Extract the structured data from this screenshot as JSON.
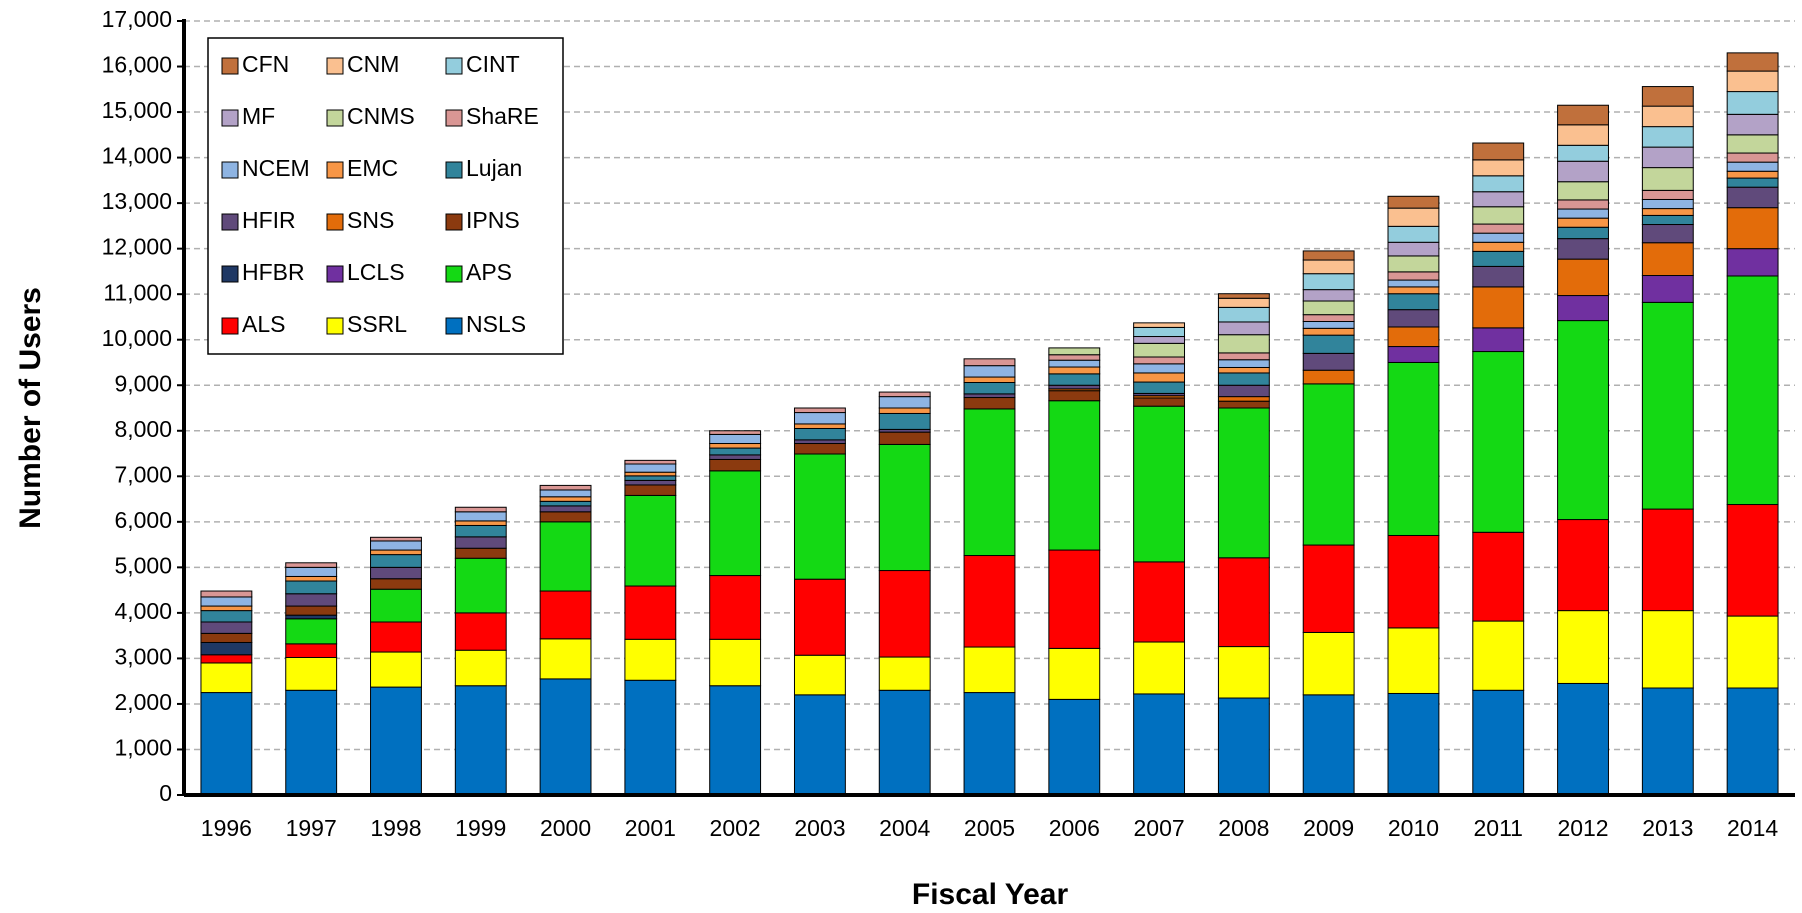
{
  "chart_data": {
    "type": "stacked-bar",
    "x_label": "Fiscal Year",
    "y_label": "Number of Users",
    "categories": [
      "1996",
      "1997",
      "1998",
      "1999",
      "2000",
      "2001",
      "2002",
      "2003",
      "2004",
      "2005",
      "2006",
      "2007",
      "2008",
      "2009",
      "2010",
      "2011",
      "2012",
      "2013",
      "2014"
    ],
    "ylim": [
      0,
      17000
    ],
    "yticks": [
      0,
      {
        "value": 1000,
        "label": "1,000"
      },
      {
        "value": 2000,
        "label": "2,000"
      },
      {
        "value": 3000,
        "label": "3,000"
      },
      {
        "value": 4000,
        "label": "4,000"
      },
      {
        "value": 5000,
        "label": "5,000"
      },
      {
        "value": 6000,
        "label": "6,000"
      },
      {
        "value": 7000,
        "label": "7,000"
      },
      {
        "value": 8000,
        "label": "8,000"
      },
      {
        "value": 9000,
        "label": "9,000"
      },
      {
        "value": 10000,
        "label": "10,000"
      },
      {
        "value": 11000,
        "label": "11,000"
      },
      {
        "value": 12000,
        "label": "12,000"
      },
      {
        "value": 13000,
        "label": "13,000"
      },
      {
        "value": 14000,
        "label": "14,000"
      },
      {
        "value": 15000,
        "label": "15,000"
      },
      {
        "value": 16000,
        "label": "16,000"
      },
      {
        "value": 17000,
        "label": "17,000"
      }
    ],
    "grid": true,
    "legend": "upper left",
    "series": [
      {
        "name": "NSLS",
        "color": "#0070c0",
        "values": [
          2250,
          2300,
          2370,
          2400,
          2550,
          2520,
          2400,
          2200,
          2300,
          2250,
          2100,
          2220,
          2130,
          2200,
          2230,
          2300,
          2450,
          2350,
          2350
        ]
      },
      {
        "name": "SSRL",
        "color": "#ffff00",
        "values": [
          650,
          720,
          770,
          780,
          880,
          900,
          1020,
          870,
          730,
          1000,
          1120,
          1140,
          1130,
          1370,
          1440,
          1520,
          1600,
          1700,
          1580
        ]
      },
      {
        "name": "ALS",
        "color": "#ff0000",
        "values": [
          180,
          300,
          660,
          820,
          1050,
          1170,
          1400,
          1670,
          1900,
          2010,
          2160,
          1760,
          1950,
          1920,
          2030,
          1950,
          2000,
          2230,
          2450
        ]
      },
      {
        "name": "APS",
        "color": "#14d914",
        "values": [
          0,
          550,
          720,
          1200,
          1520,
          1990,
          2300,
          2750,
          2770,
          3220,
          3280,
          3420,
          3290,
          3540,
          3800,
          3970,
          4370,
          4540,
          5020
        ]
      },
      {
        "name": "LCLS",
        "color": "#7030a0",
        "values": [
          0,
          0,
          0,
          0,
          0,
          0,
          0,
          0,
          0,
          0,
          0,
          0,
          0,
          0,
          350,
          520,
          550,
          590,
          600
        ]
      },
      {
        "name": "HFBR",
        "color": "#1f3864",
        "values": [
          270,
          80,
          0,
          0,
          0,
          0,
          0,
          0,
          0,
          0,
          0,
          0,
          0,
          0,
          0,
          0,
          0,
          0,
          0
        ]
      },
      {
        "name": "IPNS",
        "color": "#8b3a0f",
        "values": [
          200,
          200,
          230,
          220,
          220,
          230,
          250,
          230,
          270,
          250,
          220,
          180,
          150,
          0,
          0,
          0,
          0,
          0,
          0
        ]
      },
      {
        "name": "SNS",
        "color": "#e36c0a",
        "values": [
          0,
          0,
          0,
          0,
          0,
          0,
          0,
          0,
          0,
          0,
          40,
          50,
          100,
          300,
          430,
          900,
          800,
          720,
          900
        ]
      },
      {
        "name": "HFIR",
        "color": "#604a7b",
        "values": [
          250,
          270,
          250,
          250,
          130,
          100,
          100,
          80,
          60,
          80,
          80,
          50,
          250,
          370,
          380,
          450,
          450,
          400,
          450
        ]
      },
      {
        "name": "Lujan",
        "color": "#31849b",
        "values": [
          250,
          280,
          280,
          250,
          100,
          100,
          150,
          250,
          350,
          250,
          250,
          250,
          270,
          400,
          350,
          330,
          250,
          200,
          200
        ]
      },
      {
        "name": "EMC",
        "color": "#f79646",
        "values": [
          100,
          100,
          100,
          100,
          100,
          80,
          100,
          100,
          120,
          120,
          150,
          200,
          120,
          150,
          150,
          200,
          200,
          150,
          150
        ]
      },
      {
        "name": "NCEM",
        "color": "#8eb4e3",
        "values": [
          200,
          200,
          200,
          200,
          150,
          180,
          200,
          250,
          250,
          250,
          150,
          200,
          170,
          150,
          150,
          200,
          200,
          200,
          200
        ]
      },
      {
        "name": "ShaRE",
        "color": "#d99694",
        "values": [
          130,
          100,
          80,
          100,
          100,
          80,
          80,
          100,
          100,
          150,
          120,
          150,
          150,
          150,
          180,
          200,
          200,
          200,
          200
        ]
      },
      {
        "name": "CNMS",
        "color": "#c3d69b",
        "values": [
          0,
          0,
          0,
          0,
          0,
          0,
          0,
          0,
          0,
          0,
          150,
          300,
          400,
          300,
          350,
          380,
          400,
          500,
          400
        ]
      },
      {
        "name": "MF",
        "color": "#b3a2c7",
        "values": [
          0,
          0,
          0,
          0,
          0,
          0,
          0,
          0,
          0,
          0,
          0,
          150,
          280,
          250,
          300,
          330,
          450,
          450,
          450
        ]
      },
      {
        "name": "CINT",
        "color": "#93cddd",
        "values": [
          0,
          0,
          0,
          0,
          0,
          0,
          0,
          0,
          0,
          0,
          0,
          200,
          320,
          350,
          350,
          350,
          350,
          450,
          500
        ]
      },
      {
        "name": "CNM",
        "color": "#fac090",
        "values": [
          0,
          0,
          0,
          0,
          0,
          0,
          0,
          0,
          0,
          0,
          0,
          100,
          200,
          300,
          400,
          350,
          450,
          450,
          450
        ]
      },
      {
        "name": "CFN",
        "color": "#c0703c",
        "values": [
          0,
          0,
          0,
          0,
          0,
          0,
          0,
          0,
          0,
          0,
          0,
          0,
          100,
          200,
          260,
          370,
          430,
          430,
          400
        ]
      }
    ]
  }
}
